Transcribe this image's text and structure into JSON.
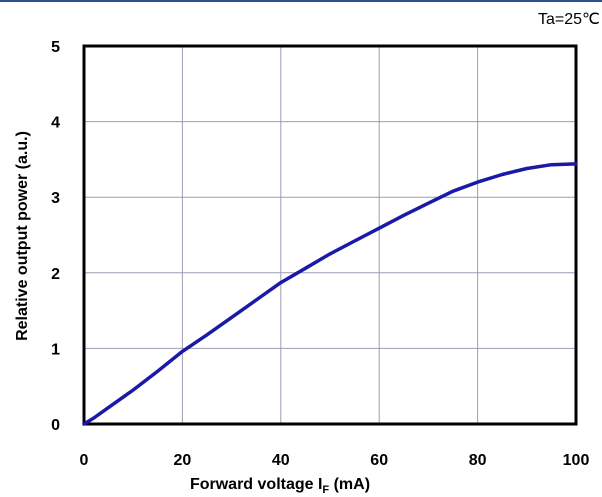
{
  "chart_data": {
    "type": "line",
    "annotation": "Ta=25℃",
    "xlabel": "Forward voltage I",
    "xlabel_sub": "F",
    "xlabel_unit": " (mA)",
    "ylabel": "Relative output power (a.u.)",
    "xlim": [
      0,
      100
    ],
    "ylim": [
      0,
      5
    ],
    "x_ticks": [
      0,
      20,
      40,
      60,
      80,
      100
    ],
    "x_tick_labels": [
      "0",
      "20",
      "40",
      "60",
      "80",
      "100"
    ],
    "y_ticks": [
      0,
      1,
      2,
      3,
      4,
      5
    ],
    "y_tick_labels": [
      "0",
      "1",
      "2",
      "3",
      "4",
      "5"
    ],
    "grid": true,
    "line_color": "#1a1aa6",
    "grid_color": "#9c9cb4",
    "top_rule_color": "#2b4f8a",
    "series": [
      {
        "x": [
          0,
          2,
          5,
          10,
          15,
          20,
          25,
          30,
          35,
          40,
          45,
          50,
          55,
          60,
          65,
          70,
          75,
          80,
          85,
          90,
          95,
          100
        ],
        "y": [
          0,
          0.08,
          0.22,
          0.45,
          0.7,
          0.96,
          1.18,
          1.41,
          1.64,
          1.87,
          2.06,
          2.25,
          2.42,
          2.59,
          2.76,
          2.92,
          3.08,
          3.2,
          3.3,
          3.38,
          3.43,
          3.44
        ]
      }
    ]
  }
}
